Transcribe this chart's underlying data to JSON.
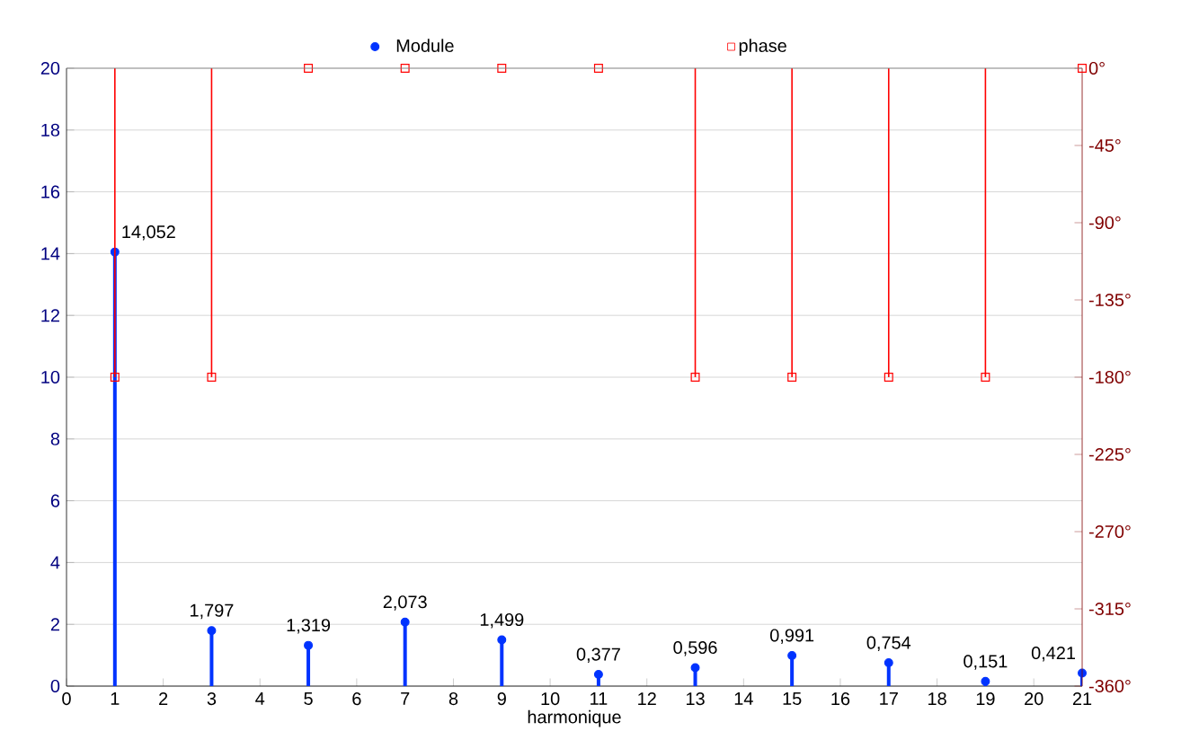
{
  "chart_data": {
    "type": "lollipop",
    "xlabel": "harmonique",
    "x": [
      1,
      3,
      5,
      7,
      9,
      11,
      13,
      15,
      17,
      19,
      21
    ],
    "series": [
      {
        "name": "Module",
        "color": "#0033ff",
        "marker": "circle",
        "values": [
          14.052,
          1.797,
          1.319,
          2.073,
          1.499,
          0.377,
          0.596,
          0.991,
          0.754,
          0.151,
          0.421
        ],
        "value_labels": [
          "14,052",
          "1,797",
          "1,319",
          "2,073",
          "1,499",
          "0,377",
          "0,596",
          "0,991",
          "0,754",
          "0,151",
          "0,421"
        ]
      },
      {
        "name": "phase",
        "color": "#ff0000",
        "marker": "square",
        "axis": "y2",
        "values": [
          -180,
          -180,
          0,
          0,
          0,
          0,
          -180,
          -180,
          -180,
          -180,
          0
        ]
      }
    ],
    "xlim": [
      0,
      21
    ],
    "xticks": [
      0,
      1,
      2,
      3,
      4,
      5,
      6,
      7,
      8,
      9,
      10,
      11,
      12,
      13,
      14,
      15,
      16,
      17,
      18,
      19,
      20,
      21
    ],
    "ylim": [
      0,
      20
    ],
    "yticks": [
      0,
      2,
      4,
      6,
      8,
      10,
      12,
      14,
      16,
      18,
      20
    ],
    "y2lim": [
      -360,
      0
    ],
    "y2ticks": [
      {
        "value": 0,
        "label": "0°"
      },
      {
        "value": -45,
        "label": "-45°"
      },
      {
        "value": -90,
        "label": "-90°"
      },
      {
        "value": -135,
        "label": "-135°"
      },
      {
        "value": -180,
        "label": "-180°"
      },
      {
        "value": -225,
        "label": "-225°"
      },
      {
        "value": -270,
        "label": "-270°"
      },
      {
        "value": -315,
        "label": "-315°"
      },
      {
        "value": -360,
        "label": "-360°"
      }
    ],
    "grid": "y",
    "legend": "top"
  }
}
